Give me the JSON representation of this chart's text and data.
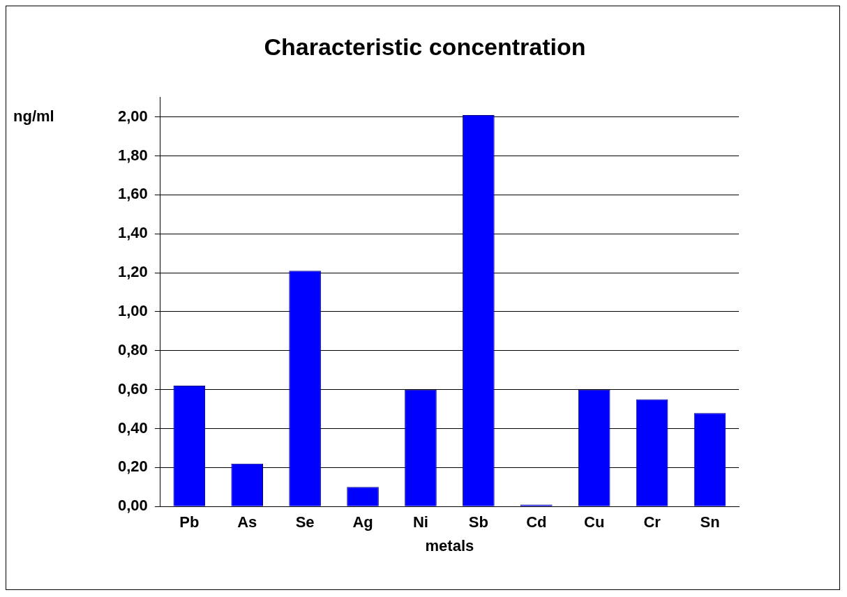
{
  "chart_data": {
    "type": "bar",
    "title": "Characteristic concentration",
    "xlabel": "metals",
    "ylabel": "ng/ml",
    "categories": [
      "Pb",
      "As",
      "Se",
      "Ag",
      "Ni",
      "Sb",
      "Cd",
      "Cu",
      "Cr",
      "Sn"
    ],
    "values": [
      0.62,
      0.22,
      1.21,
      0.1,
      0.6,
      2.01,
      0.01,
      0.6,
      0.55,
      0.48
    ],
    "color": "#0000ff",
    "ylim": [
      0,
      2.1
    ],
    "yticks": [
      {
        "value": 0,
        "label": "0,00"
      },
      {
        "value": 0.2,
        "label": "0,20"
      },
      {
        "value": 0.4,
        "label": "0,40"
      },
      {
        "value": 0.6,
        "label": "0,60"
      },
      {
        "value": 0.8,
        "label": "0,80"
      },
      {
        "value": 1,
        "label": "1,00"
      },
      {
        "value": 1.2,
        "label": "1,20"
      },
      {
        "value": 1.4,
        "label": "1,40"
      },
      {
        "value": 1.6,
        "label": "1,60"
      },
      {
        "value": 1.8,
        "label": "1,80"
      },
      {
        "value": 2,
        "label": "2,00"
      }
    ],
    "grid": "y",
    "legend": false
  }
}
